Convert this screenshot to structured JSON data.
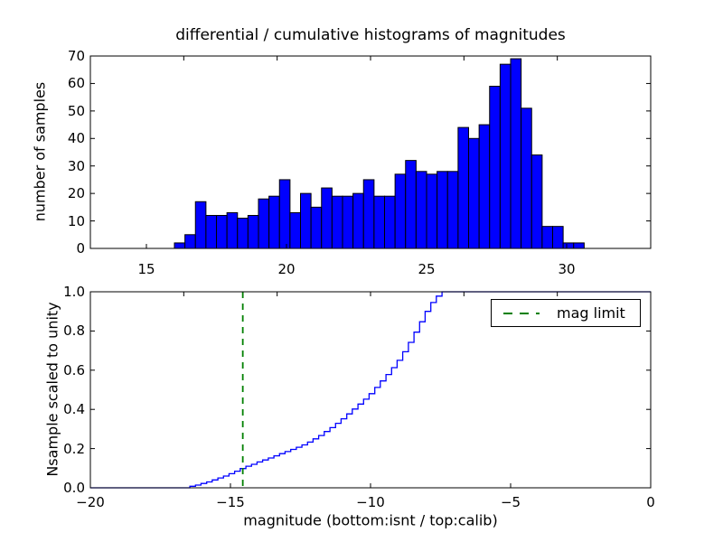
{
  "title": "differential / cumulative histograms of magnitudes",
  "colors": {
    "bar_fill": "#0000ff",
    "bar_edge": "#000000",
    "cumulative_line": "#0000ff",
    "mag_limit_line": "#008000",
    "axis": "#000000",
    "background": "#ffffff"
  },
  "legend": {
    "label": "mag limit"
  },
  "top_plot": {
    "ylabel": "number of samples",
    "xtick_labels": [
      "15",
      "20",
      "25",
      "30"
    ],
    "xtick_values": [
      15,
      20,
      25,
      30
    ],
    "ytick_labels": [
      "0",
      "10",
      "20",
      "30",
      "40",
      "50",
      "60",
      "70"
    ],
    "ytick_values": [
      0,
      10,
      20,
      30,
      40,
      50,
      60,
      70
    ]
  },
  "bottom_plot": {
    "ylabel": "Nsample scaled to unity",
    "xlabel": "magnitude (bottom:isnt / top:calib)",
    "xtick_labels": [
      "−20",
      "−15",
      "−10",
      "−5",
      "0"
    ],
    "xtick_values": [
      -20,
      -15,
      -10,
      -5,
      0
    ],
    "ytick_labels": [
      "0.0",
      "0.2",
      "0.4",
      "0.6",
      "0.8",
      "1.0"
    ],
    "ytick_values": [
      0,
      0.2,
      0.4,
      0.6,
      0.8,
      1.0
    ]
  },
  "chart_data": [
    {
      "type": "bar",
      "subplot": "top",
      "title": "differential histogram of magnitudes (calib)",
      "ylabel": "number of samples",
      "xlim": [
        13,
        33
      ],
      "ylim": [
        0,
        70
      ],
      "grid": false,
      "bin_start": 16.0,
      "bin_width": 0.375,
      "values": [
        2,
        5,
        17,
        12,
        12,
        13,
        11,
        12,
        18,
        19,
        25,
        13,
        20,
        15,
        22,
        19,
        19,
        20,
        25,
        19,
        19,
        27,
        32,
        28,
        27,
        28,
        28,
        44,
        40,
        45,
        59,
        67,
        69,
        51,
        34,
        8,
        8,
        2,
        2,
        0
      ]
    },
    {
      "type": "line",
      "subplot": "bottom",
      "title": "cumulative histogram of magnitudes (isnt), scaled to unity",
      "style": "steps-post",
      "xlabel": "magnitude (bottom:isnt / top:calib)",
      "ylabel": "Nsample scaled to unity",
      "xlim": [
        -20,
        0
      ],
      "ylim": [
        0,
        1.0
      ],
      "grid": false,
      "legend_position": "upper right",
      "points": [
        [
          -16.45,
          0.008
        ],
        [
          -16.25,
          0.014
        ],
        [
          -16.05,
          0.022
        ],
        [
          -15.85,
          0.03
        ],
        [
          -15.65,
          0.04
        ],
        [
          -15.45,
          0.05
        ],
        [
          -15.25,
          0.06
        ],
        [
          -15.05,
          0.072
        ],
        [
          -14.85,
          0.085
        ],
        [
          -14.65,
          0.098
        ],
        [
          -14.45,
          0.11
        ],
        [
          -14.25,
          0.12
        ],
        [
          -14.05,
          0.132
        ],
        [
          -13.85,
          0.142
        ],
        [
          -13.65,
          0.152
        ],
        [
          -13.45,
          0.163
        ],
        [
          -13.25,
          0.174
        ],
        [
          -13.05,
          0.185
        ],
        [
          -12.85,
          0.196
        ],
        [
          -12.65,
          0.207
        ],
        [
          -12.45,
          0.219
        ],
        [
          -12.25,
          0.233
        ],
        [
          -12.05,
          0.25
        ],
        [
          -11.85,
          0.267
        ],
        [
          -11.65,
          0.287
        ],
        [
          -11.45,
          0.307
        ],
        [
          -11.25,
          0.329
        ],
        [
          -11.05,
          0.352
        ],
        [
          -10.85,
          0.377
        ],
        [
          -10.65,
          0.402
        ],
        [
          -10.45,
          0.427
        ],
        [
          -10.25,
          0.452
        ],
        [
          -10.05,
          0.48
        ],
        [
          -9.85,
          0.512
        ],
        [
          -9.65,
          0.545
        ],
        [
          -9.45,
          0.578
        ],
        [
          -9.25,
          0.613
        ],
        [
          -9.05,
          0.65
        ],
        [
          -8.85,
          0.694
        ],
        [
          -8.65,
          0.742
        ],
        [
          -8.45,
          0.794
        ],
        [
          -8.25,
          0.847
        ],
        [
          -8.05,
          0.9
        ],
        [
          -7.85,
          0.945
        ],
        [
          -7.65,
          0.978
        ],
        [
          -7.45,
          1.0
        ]
      ]
    },
    {
      "type": "vline",
      "subplot": "bottom",
      "x": -14.56,
      "label": "mag limit",
      "line_style": "dashed",
      "color": "#008000"
    }
  ]
}
